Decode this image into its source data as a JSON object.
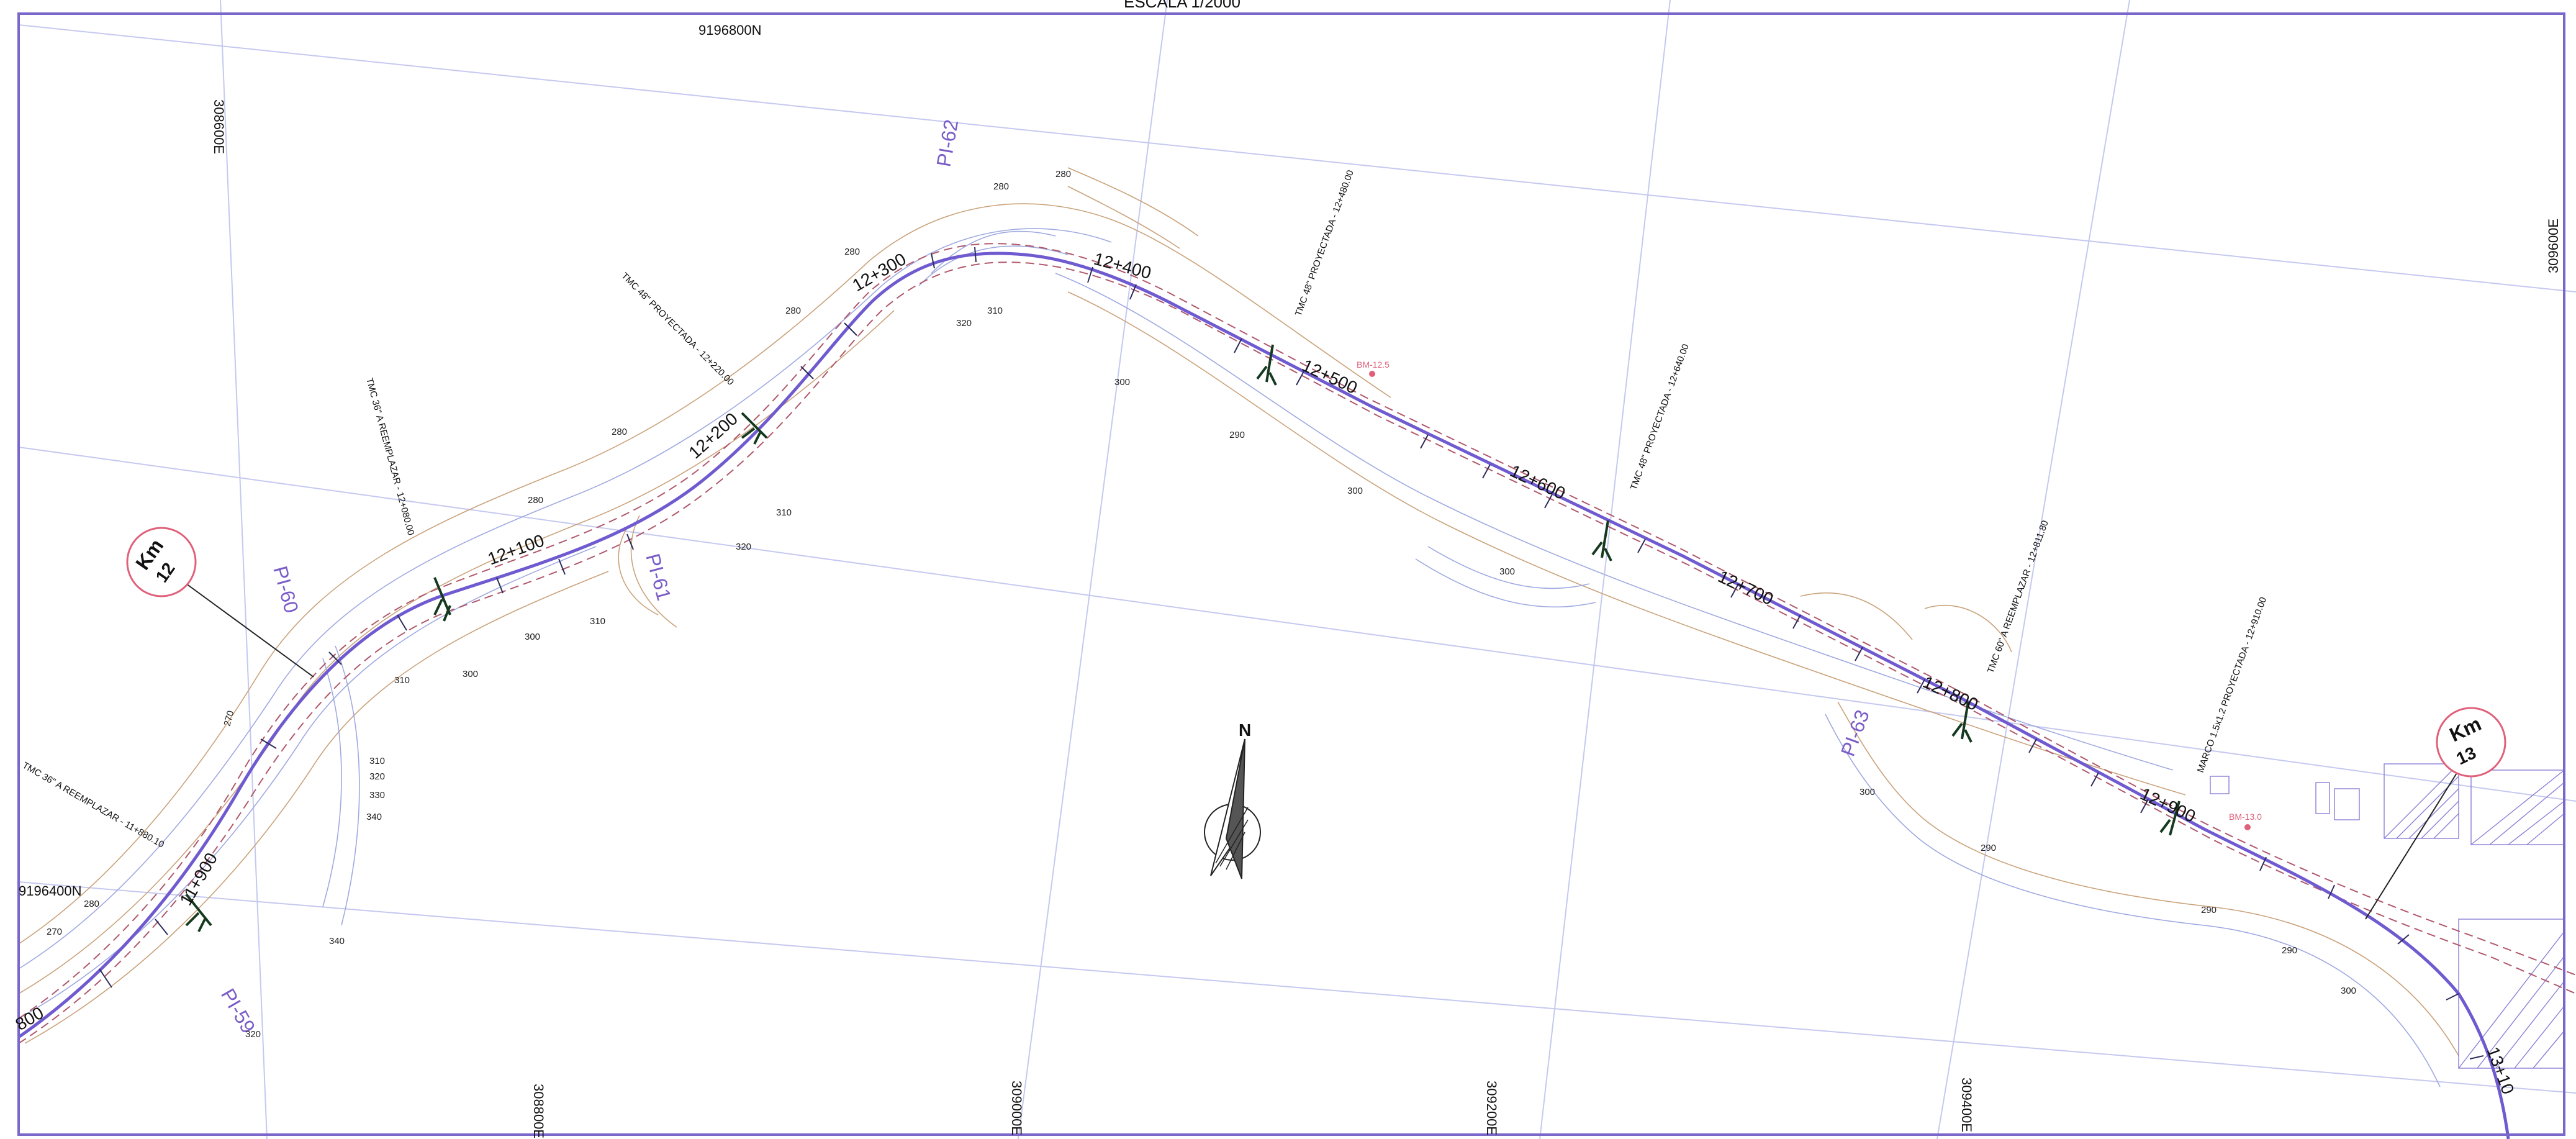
{
  "sheet": {
    "scale_label": "ESCALA   1/2000"
  },
  "grid": {
    "north_9196800": "9196800N",
    "north_9196400": "9196400N",
    "east_308600_top": "308600E",
    "east_308600_right": "309600E",
    "east_308800_bottom": "308800E",
    "east_309000_bottom": "309000E",
    "east_309200_bottom": "309200E",
    "east_309400_bottom": "309400E"
  },
  "stations": {
    "s11_800": "800",
    "s11_900": "11+900",
    "s12_100": "12+100",
    "s12_200": "12+200",
    "s12_300": "12+300",
    "s12_400": "12+400",
    "s12_500": "12+500",
    "s12_600": "12+600",
    "s12_700": "12+700",
    "s12_800": "12+800",
    "s12_900": "12+900",
    "s13_100": "13+10"
  },
  "kilometer_markers": [
    {
      "label": "Km",
      "number": "12"
    },
    {
      "label": "Km",
      "number": "13"
    }
  ],
  "pis": {
    "pi59": "PI-59",
    "pi60": "PI-60",
    "pi61": "PI-61",
    "pi62": "PI-62",
    "pi63": "PI-63"
  },
  "structures": {
    "tmc_11880": "TMC 36\" A REEMPLAZAR - 11+880.10",
    "tmc_12080": "TMC 36\" A REEMPLAZAR - 12+080.00",
    "tmc_12220": "TMC 48\" PROYECTADA - 12+220.00",
    "tmc_12480": "TMC 48\" PROYECTADA - 12+480.00",
    "tmc_12640": "TMC 48\" PROYECTADA - 12+640.00",
    "tmc_12811": "TMC 60\" A REEMPLAZAR - 12+811.80",
    "marco_12910": "MARCO 1.5x1.2 PROYECTADA - 12+910.00"
  },
  "benchmarks": {
    "bm12": "BM-12.5",
    "bm13": "BM-13.0"
  },
  "north_arrow": {
    "letter": "N"
  },
  "contour_labels": {
    "c270a": "270",
    "c270b": "270",
    "c280a": "280",
    "c280b": "280",
    "c280c": "280",
    "c280d": "280",
    "c280e": "280",
    "c280f": "280",
    "c280g": "280",
    "c290a": "290",
    "c290b": "290",
    "c290c": "290",
    "c290d": "290",
    "c300a": "300",
    "c300b": "300",
    "c300c": "300",
    "c300d": "300",
    "c300e": "300",
    "c300f": "300",
    "c300g": "300",
    "c310a": "310",
    "c310b": "310",
    "c310c": "310",
    "c310d": "310",
    "c310e": "310",
    "c320a": "320",
    "c320b": "320",
    "c320c": "320",
    "c320d": "320",
    "c330a": "330",
    "c340a": "340",
    "c340b": "340"
  },
  "colors": {
    "frame": "#7b66c9",
    "alignment": "#6f5ad0",
    "offset": "#b0586b",
    "contour_primary": "#c9a27a",
    "contour_secondary": "#9fa9e0",
    "grid": "#c5c9ef",
    "km_circle": "#e0607a",
    "structure": "#153a1f",
    "pi": "#7a5cc7"
  }
}
